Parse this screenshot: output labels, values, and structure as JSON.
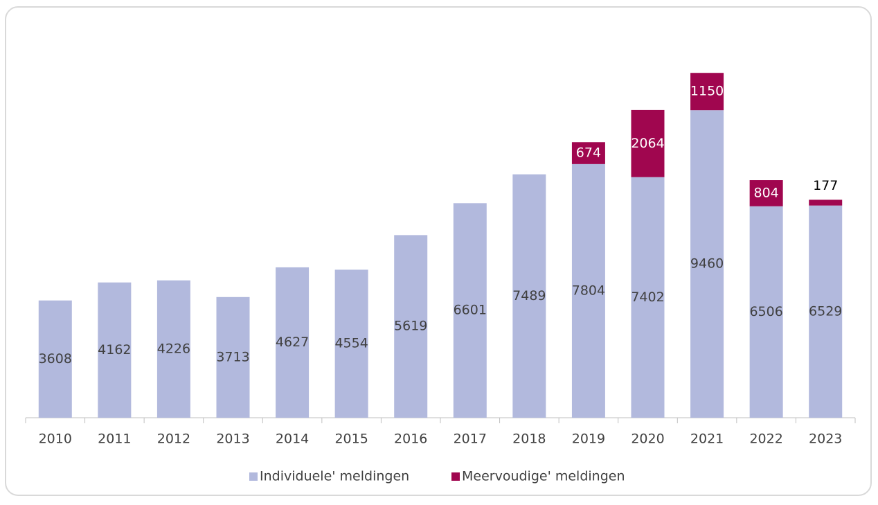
{
  "chart_data": {
    "type": "bar",
    "stacked": true,
    "categories": [
      "2010",
      "2011",
      "2012",
      "2013",
      "2014",
      "2015",
      "2016",
      "2017",
      "2018",
      "2019",
      "2020",
      "2021",
      "2022",
      "2023"
    ],
    "series": [
      {
        "name": "Individuele' meldingen",
        "color": "#b2b9dd",
        "values": [
          3608,
          4162,
          4226,
          3713,
          4627,
          4554,
          5619,
          6601,
          7489,
          7804,
          7402,
          9460,
          6506,
          6529
        ]
      },
      {
        "name": "Meervoudige' meldingen",
        "color": "#a0064f",
        "values": [
          null,
          null,
          null,
          null,
          null,
          null,
          null,
          null,
          null,
          674,
          2064,
          1150,
          804,
          177
        ]
      }
    ],
    "ylim": [
      0,
      12000
    ],
    "legend": "bottom"
  }
}
